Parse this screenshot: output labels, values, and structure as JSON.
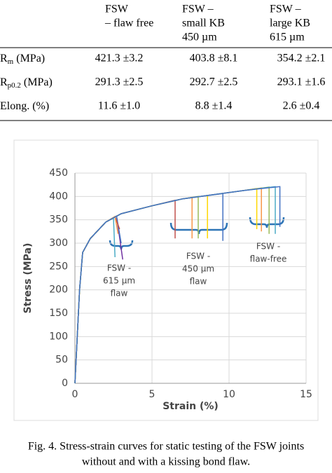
{
  "table": {
    "header": [
      [
        "FSW",
        "– flaw free"
      ],
      [
        "FSW –",
        "small KB",
        "450 µm"
      ],
      [
        "FSW –",
        "large KB",
        "615 µm"
      ]
    ],
    "rows": [
      {
        "label": {
          "main": "R",
          "sub": "m",
          "unit": " (MPa)"
        },
        "cells": [
          "421.3 ±3.2",
          "403.8 ±8.1",
          "354.2 ±2.1"
        ]
      },
      {
        "label": {
          "main": "R",
          "sub": "p0.2",
          "unit": " (MPa)"
        },
        "cells": [
          "291.3 ±2.5",
          "292.7 ±2.5",
          "293.1 ±1.6"
        ]
      },
      {
        "label": {
          "main": "Elong. (%)"
        },
        "cells": [
          "11.6 ±1.0",
          "8.8 ±1.4",
          "2.6 ±0.4"
        ]
      }
    ]
  },
  "chart_data": {
    "type": "line",
    "x_label": "Strain (%)",
    "y_label": "Stress (MPa)",
    "xlim": [
      0,
      15
    ],
    "ylim": [
      0,
      450
    ],
    "xticks": [
      0,
      5,
      10,
      15
    ],
    "yticks": [
      0,
      50,
      100,
      150,
      200,
      250,
      300,
      350,
      400,
      450
    ],
    "grid": true,
    "series": [
      {
        "color": "#7030a0",
        "x": [
          0,
          0.3,
          0.5,
          1,
          2,
          2.7,
          3.1
        ],
        "values": [
          0,
          200,
          280,
          310,
          345,
          358,
          265
        ]
      },
      {
        "color": "#4472c4",
        "x": [
          0,
          0.3,
          0.5,
          1,
          2,
          2.7,
          3.0
        ],
        "values": [
          0,
          200,
          280,
          310,
          345,
          358,
          300
        ]
      },
      {
        "color": "#c0504d",
        "x": [
          0,
          0.3,
          0.5,
          1,
          2,
          2.6,
          2.9
        ],
        "values": [
          0,
          200,
          280,
          310,
          345,
          357,
          330
        ]
      },
      {
        "color": "#4bacc6",
        "x": [
          0,
          0.3,
          0.5,
          1,
          2,
          2.5,
          2.6
        ],
        "values": [
          0,
          200,
          280,
          310,
          345,
          355,
          270
        ]
      },
      {
        "color": "#f79646",
        "x": [
          0,
          0.3,
          0.5,
          1,
          2,
          2.6,
          2.8
        ],
        "values": [
          0,
          200,
          280,
          310,
          345,
          357,
          320
        ]
      },
      {
        "color": "#c0504d",
        "x": [
          0,
          0.3,
          0.5,
          1,
          2,
          3,
          5,
          6.5,
          6.5
        ],
        "values": [
          0,
          200,
          280,
          310,
          345,
          363,
          380,
          392,
          310
        ]
      },
      {
        "color": "#f79646",
        "x": [
          0,
          0.3,
          0.5,
          1,
          2,
          3,
          5,
          7,
          7.6,
          7.6
        ],
        "values": [
          0,
          200,
          280,
          310,
          345,
          363,
          380,
          395,
          398,
          310
        ]
      },
      {
        "color": "#9bbb59",
        "x": [
          0,
          0.3,
          0.5,
          1,
          2,
          3,
          5,
          7,
          8.0,
          8.0
        ],
        "values": [
          0,
          200,
          280,
          310,
          345,
          363,
          380,
          395,
          400,
          310
        ]
      },
      {
        "color": "#ffd700",
        "x": [
          0,
          0.3,
          0.5,
          1,
          2,
          3,
          5,
          7,
          8.6,
          8.6
        ],
        "values": [
          0,
          200,
          280,
          310,
          345,
          363,
          380,
          395,
          402,
          310
        ]
      },
      {
        "color": "#4472c4",
        "x": [
          0,
          0.3,
          0.5,
          1,
          2,
          3,
          5,
          7,
          9.6,
          9.6
        ],
        "values": [
          0,
          200,
          280,
          310,
          345,
          363,
          380,
          395,
          406,
          305
        ]
      },
      {
        "color": "#ffd700",
        "x": [
          0,
          0.3,
          0.5,
          1,
          2,
          3,
          5,
          7,
          9,
          11,
          11.8,
          11.8
        ],
        "values": [
          0,
          200,
          280,
          310,
          345,
          363,
          380,
          395,
          404,
          413,
          417,
          330
        ]
      },
      {
        "color": "#f79646",
        "x": [
          0,
          0.3,
          0.5,
          1,
          2,
          3,
          5,
          7,
          9,
          11,
          12.1,
          12.1
        ],
        "values": [
          0,
          200,
          280,
          310,
          345,
          363,
          380,
          395,
          404,
          413,
          418,
          325
        ]
      },
      {
        "color": "#9bbb59",
        "x": [
          0,
          0.3,
          0.5,
          1,
          2,
          3,
          5,
          7,
          9,
          11,
          12.6,
          12.6
        ],
        "values": [
          0,
          200,
          280,
          310,
          345,
          363,
          380,
          395,
          404,
          413,
          420,
          320
        ]
      },
      {
        "color": "#4bacc6",
        "x": [
          0,
          0.3,
          0.5,
          1,
          2,
          3,
          5,
          7,
          9,
          11,
          13.0,
          13.0
        ],
        "values": [
          0,
          200,
          280,
          310,
          345,
          363,
          380,
          395,
          404,
          413,
          421,
          320
        ]
      },
      {
        "color": "#4472c4",
        "x": [
          0,
          0.3,
          0.5,
          1,
          2,
          3,
          5,
          7,
          9,
          11,
          13,
          13.3,
          13.3
        ],
        "values": [
          0,
          200,
          280,
          310,
          345,
          363,
          380,
          395,
          404,
          413,
          420,
          421,
          335
        ]
      }
    ],
    "annotations": [
      [
        "FSW -",
        "615 µm",
        "flaw"
      ],
      [
        "FSW -",
        "450 µm",
        "flaw"
      ],
      [
        "FSW -",
        "flaw-free"
      ]
    ]
  },
  "caption": [
    "Fig. 4. Stress-strain curves for static testing of the FSW joints",
    "without and with a kissing bond flaw."
  ]
}
